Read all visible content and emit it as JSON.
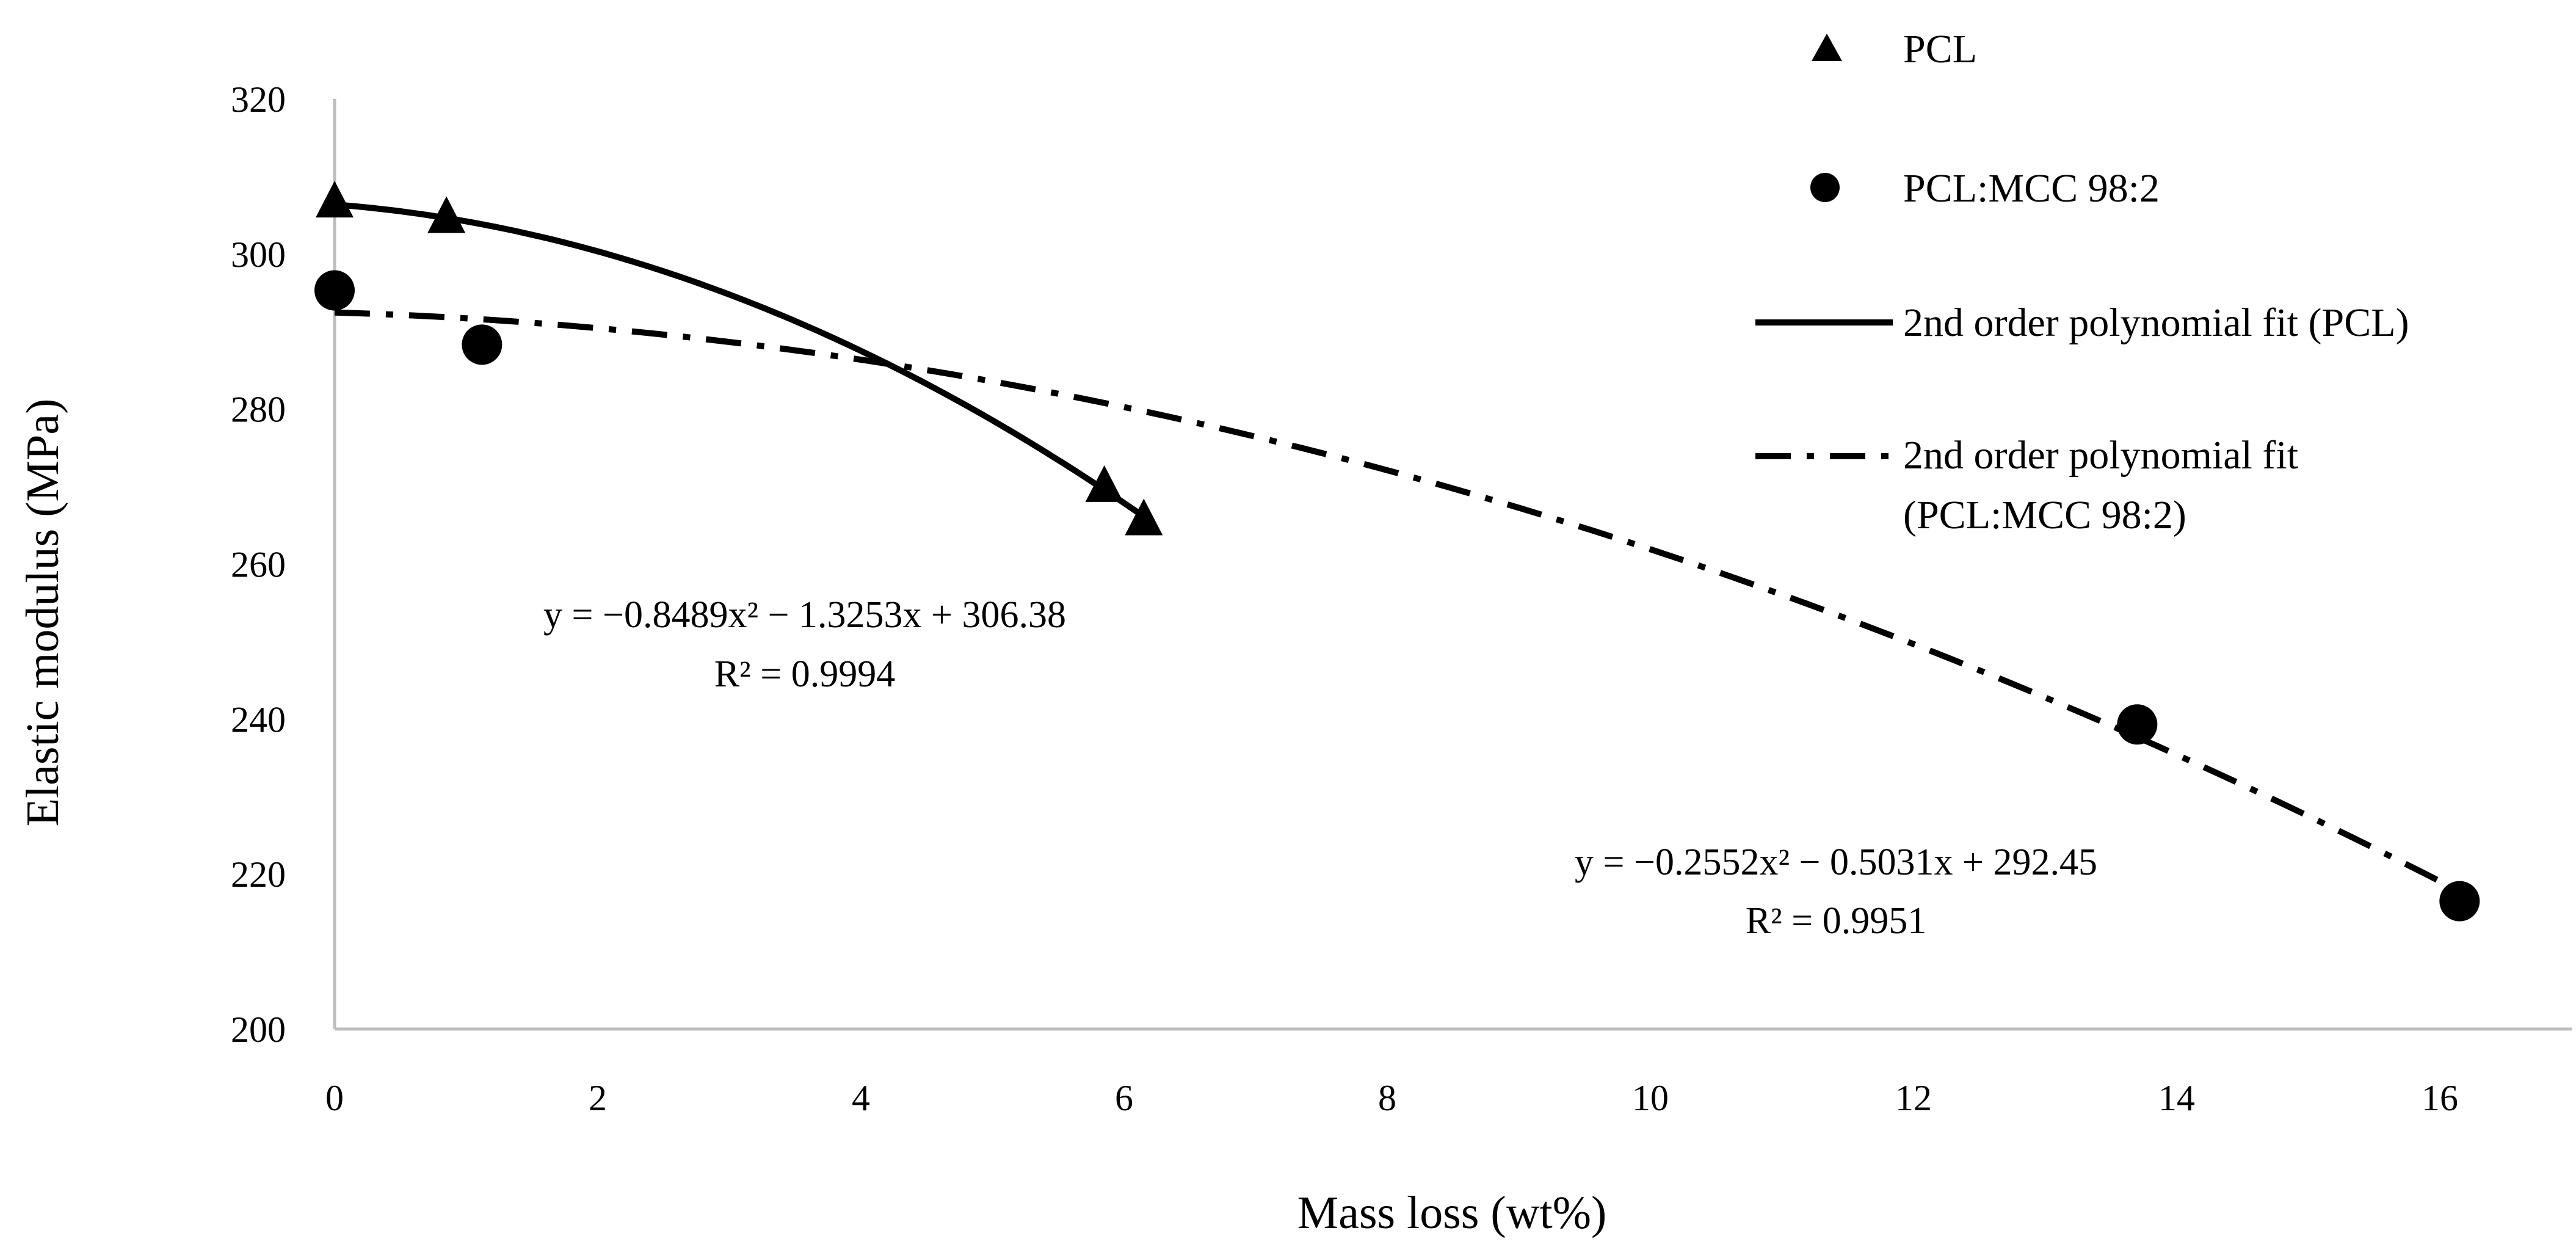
{
  "chart_data": {
    "type": "scatter",
    "title": "",
    "xlabel": "Mass loss (wt%)",
    "ylabel": "Elastic modulus (MPa)",
    "xlim": [
      0,
      17
    ],
    "ylim": [
      200,
      320
    ],
    "xticks": [
      0,
      2,
      4,
      6,
      8,
      10,
      12,
      14,
      16
    ],
    "yticks": [
      200,
      220,
      240,
      260,
      280,
      300,
      320
    ],
    "xtick_labels": [
      "0",
      "2",
      "4",
      "6",
      "8",
      "10",
      "12",
      "14",
      "16"
    ],
    "ytick_labels": [
      "200",
      "220",
      "240",
      "260",
      "280",
      "300",
      "320"
    ],
    "grid": false,
    "legend_position": "top-right",
    "series": [
      {
        "name": "PCL",
        "marker": "triangle",
        "color": "#000000",
        "x": [
          0.0,
          0.85,
          5.85,
          6.15
        ],
        "y": [
          306.5,
          304.5,
          269.8,
          265.5
        ]
      },
      {
        "name": "PCL:MCC 98:2",
        "marker": "circle",
        "color": "#000000",
        "x": [
          0.0,
          1.12,
          13.7,
          16.15
        ],
        "y": [
          295.3,
          288.3,
          239.3,
          216.5
        ]
      }
    ],
    "fits": [
      {
        "name": "2nd order polynomial fit (PCL)",
        "style": "solid",
        "coefficients": [
          -0.8489,
          -1.3253,
          306.38
        ],
        "x_range": [
          0,
          6.15
        ],
        "equation": "y = −0.8489x² − 1.3253x + 306.38",
        "r2": "R² = 0.9994"
      },
      {
        "name": "2nd order polynomial fit",
        "name_line2": "(PCL:MCC 98:2)",
        "style": "dash-dot",
        "coefficients": [
          -0.2552,
          -0.5031,
          292.45
        ],
        "x_range": [
          0,
          16.15
        ],
        "equation": "y = −0.2552x² − 0.5031x + 292.45",
        "r2": "R² = 0.9951"
      }
    ]
  }
}
